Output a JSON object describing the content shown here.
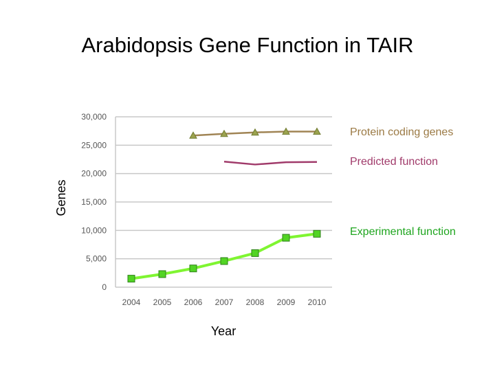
{
  "chart_data": {
    "type": "line",
    "title": "Arabidopsis Gene Function in TAIR",
    "xlabel": "Year",
    "ylabel": "Genes",
    "x": [
      2004,
      2005,
      2006,
      2007,
      2008,
      2009,
      2010
    ],
    "ylim": [
      0,
      30000
    ],
    "y_ticks": [
      "0",
      "5,000",
      "10,000",
      "15,000",
      "20,000",
      "25,000",
      "30,000"
    ],
    "y_tick_values": [
      0,
      5000,
      10000,
      15000,
      20000,
      25000,
      30000
    ],
    "grid": true,
    "series": [
      {
        "name": "Protein coding genes",
        "color": "#a08454",
        "marker": "triangle",
        "marker_color": "#9ca34f",
        "text_color": "#9b7a45",
        "values": [
          null,
          null,
          26700,
          27000,
          27250,
          27400,
          27400
        ]
      },
      {
        "name": "Predicted function",
        "color": "#a03a6a",
        "marker": "none",
        "text_color": "#a03a6a",
        "values": [
          null,
          null,
          null,
          22100,
          21600,
          22000,
          22050
        ]
      },
      {
        "name": "Experimental function",
        "color": "#7ff531",
        "marker": "square",
        "marker_color": "#52d424",
        "text_color": "#1ea51e",
        "values": [
          1500,
          2300,
          3300,
          4600,
          6000,
          8700,
          9400
        ]
      }
    ]
  }
}
